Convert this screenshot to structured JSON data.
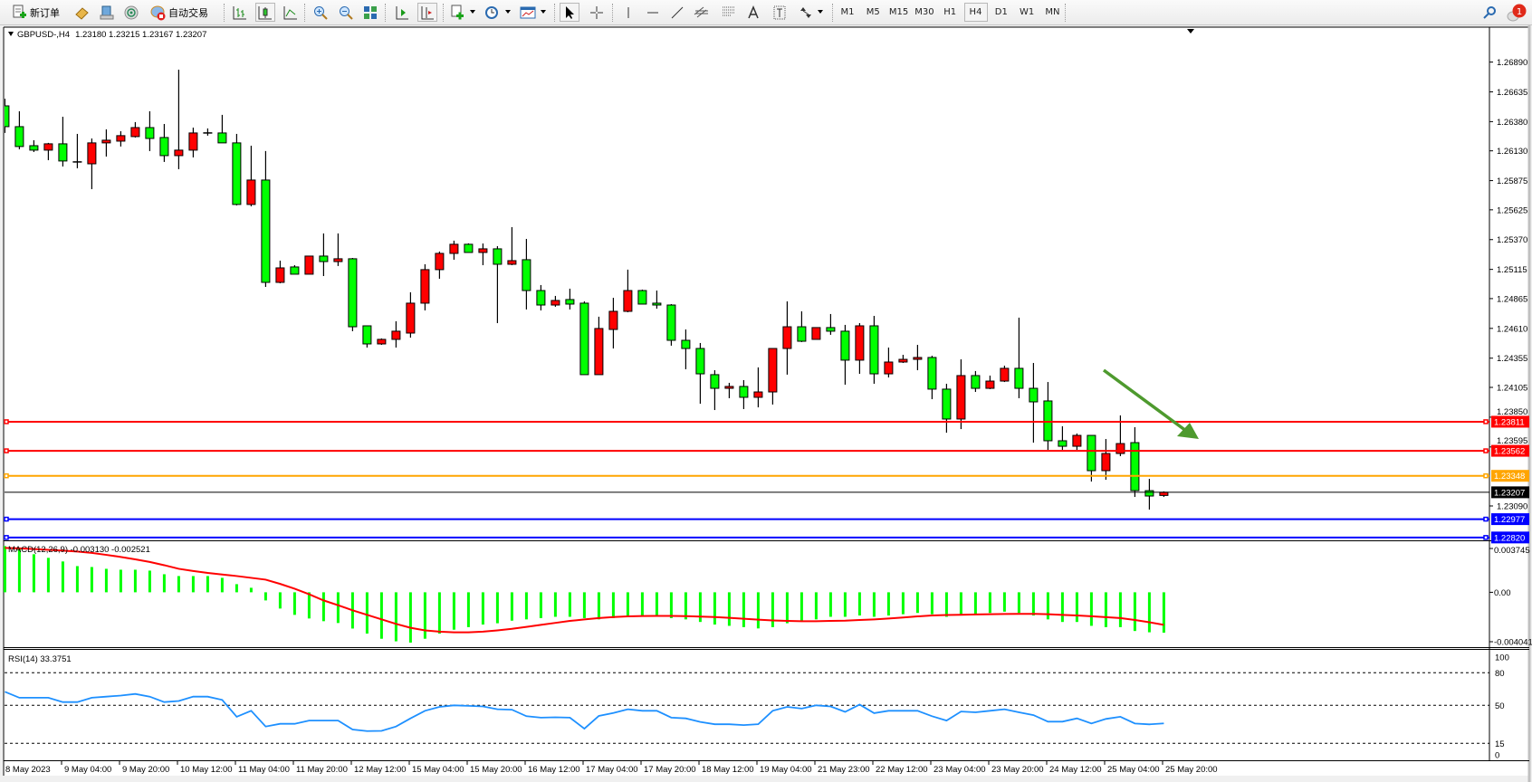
{
  "toolbar": {
    "new_order": "新订单",
    "auto_trading": "自动交易",
    "timeframes": [
      "M1",
      "M5",
      "M15",
      "M30",
      "H1",
      "H4",
      "D1",
      "W1",
      "MN"
    ],
    "selected_timeframe": "H4",
    "alert_count": "1",
    "icons": [
      "new-order-icon",
      "market-watch-icon",
      "navigator-icon",
      "signals-icon",
      "auto-trading-icon",
      "bar-chart-icon",
      "candlestick-icon",
      "line-chart-icon",
      "zoom-in-icon",
      "zoom-out-icon",
      "tile-windows-icon",
      "auto-scroll-icon",
      "chart-shift-icon",
      "indicators-icon",
      "periods-icon",
      "templates-icon",
      "cursor-icon",
      "crosshair-icon",
      "vertical-line-icon",
      "horizontal-line-icon",
      "trendline-icon",
      "equidistant-channel-icon",
      "fibonacci-icon",
      "text-icon",
      "text-label-icon",
      "arrows-icon",
      "search-icon",
      "alert-icon"
    ]
  },
  "chart": {
    "symbol": "GBPUSD-,H4",
    "ohlc": "1.23180 1.23215 1.23167 1.23207",
    "macd_label": "MACD(12,26,9) -0.003130 -0.002521",
    "rsi_label": "RSI(14) 33.3751"
  },
  "chart_data": [
    {
      "type": "candlestick",
      "title": "GBPUSD-,H4",
      "bull_color": "#ff0000",
      "bear_color": "#00ff00",
      "y_ticks": [
        "1.26890",
        "1.26635",
        "1.26380",
        "1.26130",
        "1.25875",
        "1.25625",
        "1.25370",
        "1.25115",
        "1.24865",
        "1.24610",
        "1.24355",
        "1.24105",
        "1.23850",
        "1.23595",
        "1.23090"
      ],
      "x_tick_labels": [
        "8 May 2023",
        "9 May 04:00",
        "9 May 20:00",
        "10 May 12:00",
        "11 May 04:00",
        "11 May 20:00",
        "12 May 12:00",
        "15 May 04:00",
        "15 May 20:00",
        "16 May 12:00",
        "17 May 04:00",
        "17 May 20:00",
        "18 May 12:00",
        "19 May 04:00",
        "21 May 23:00",
        "22 May 12:00",
        "23 May 04:00",
        "23 May 20:00",
        "24 May 12:00",
        "25 May 04:00",
        "25 May 20:00"
      ],
      "ohlc": [
        [
          1.26515,
          1.26577,
          1.26283,
          1.26337
        ],
        [
          1.26337,
          1.26469,
          1.26143,
          1.26167
        ],
        [
          1.26174,
          1.26221,
          1.2612,
          1.26136
        ],
        [
          1.26136,
          1.26198,
          1.2605,
          1.2619
        ],
        [
          1.2619,
          1.26422,
          1.25996,
          1.26043
        ],
        [
          1.26035,
          1.26275,
          1.25981,
          1.26027
        ],
        [
          1.26019,
          1.26236,
          1.25802,
          1.26198
        ],
        [
          1.26198,
          1.26314,
          1.26081,
          1.26221
        ],
        [
          1.26213,
          1.26298,
          1.26167,
          1.2626
        ],
        [
          1.26252,
          1.26376,
          1.26244,
          1.26329
        ],
        [
          1.26329,
          1.26469,
          1.26128,
          1.26236
        ],
        [
          1.26244,
          1.2636,
          1.26035,
          1.26089
        ],
        [
          1.26089,
          1.26825,
          1.25973,
          1.26136
        ],
        [
          1.26136,
          1.26329,
          1.26074,
          1.26283
        ],
        [
          1.26283,
          1.26322,
          1.2626,
          1.26283
        ],
        [
          1.26283,
          1.26438,
          1.26198,
          1.26198
        ],
        [
          1.26198,
          1.26275,
          1.25663,
          1.25671
        ],
        [
          1.25671,
          1.26174,
          1.25655,
          1.2588
        ],
        [
          1.2588,
          1.26128,
          1.24965,
          1.25004
        ],
        [
          1.25004,
          1.2519,
          1.24996,
          1.25128
        ],
        [
          1.25136,
          1.25151,
          1.25074,
          1.25074
        ],
        [
          1.25074,
          1.25229,
          1.25074,
          1.25229
        ],
        [
          1.25229,
          1.25423,
          1.25058,
          1.25182
        ],
        [
          1.25182,
          1.25423,
          1.25144,
          1.25206
        ],
        [
          1.25206,
          1.25213,
          1.24586,
          1.24624
        ],
        [
          1.24632,
          1.24632,
          1.24446,
          1.24477
        ],
        [
          1.24477,
          1.24524,
          1.24469,
          1.24516
        ],
        [
          1.24516,
          1.24671,
          1.24446,
          1.24586
        ],
        [
          1.2457,
          1.24919,
          1.24531,
          1.24826
        ],
        [
          1.24826,
          1.25159,
          1.24764,
          1.25113
        ],
        [
          1.25113,
          1.25268,
          1.25035,
          1.25252
        ],
        [
          1.25252,
          1.25361,
          1.25198,
          1.2533
        ],
        [
          1.2533,
          1.25338,
          1.2526,
          1.2526
        ],
        [
          1.2526,
          1.25337,
          1.25151,
          1.25291
        ],
        [
          1.25291,
          1.25314,
          1.24655,
          1.25159
        ],
        [
          1.25159,
          1.25477,
          1.25151,
          1.2519
        ],
        [
          1.25198,
          1.25376,
          1.24772,
          1.24934
        ],
        [
          1.24934,
          1.24981,
          1.24764,
          1.2481
        ],
        [
          1.2481,
          1.24888,
          1.24795,
          1.24849
        ],
        [
          1.24857,
          1.2495,
          1.24772,
          1.24818
        ],
        [
          1.24826,
          1.24841,
          1.24214,
          1.24214
        ],
        [
          1.24214,
          1.2471,
          1.24214,
          1.24609
        ],
        [
          1.24601,
          1.24872,
          1.24438,
          1.24756
        ],
        [
          1.24756,
          1.25113,
          1.24748,
          1.24934
        ],
        [
          1.24934,
          1.24942,
          1.24818,
          1.24818
        ],
        [
          1.24826,
          1.24934,
          1.24779,
          1.2481
        ],
        [
          1.2481,
          1.24818,
          1.24462,
          1.24508
        ],
        [
          1.24508,
          1.24601,
          1.2426,
          1.24438
        ],
        [
          1.24438,
          1.24485,
          1.23965,
          1.24221
        ],
        [
          1.24214,
          1.24252,
          1.23911,
          1.24097
        ],
        [
          1.24097,
          1.24144,
          1.24012,
          1.24113
        ],
        [
          1.24113,
          1.24167,
          1.23919,
          1.2402
        ],
        [
          1.2402,
          1.24276,
          1.23934,
          1.24066
        ],
        [
          1.24066,
          1.24438,
          1.23958,
          1.24438
        ],
        [
          1.24438,
          1.24841,
          1.24214,
          1.24624
        ],
        [
          1.24624,
          1.24756,
          1.24493,
          1.245
        ],
        [
          1.24516,
          1.24617,
          1.24516,
          1.24617
        ],
        [
          1.24617,
          1.24733,
          1.24555,
          1.24586
        ],
        [
          1.24586,
          1.2464,
          1.24128,
          1.24338
        ],
        [
          1.24338,
          1.24655,
          1.24221,
          1.24632
        ],
        [
          1.24632,
          1.24717,
          1.24136,
          1.24221
        ],
        [
          1.24221,
          1.24446,
          1.2419,
          1.24322
        ],
        [
          1.24322,
          1.24384,
          1.24314,
          1.24345
        ],
        [
          1.24345,
          1.24469,
          1.24252,
          1.24361
        ],
        [
          1.24361,
          1.24376,
          1.24004,
          1.2409
        ],
        [
          1.2409,
          1.24136,
          1.23717,
          1.23834
        ],
        [
          1.23834,
          1.24345,
          1.23748,
          1.24206
        ],
        [
          1.24206,
          1.24245,
          1.24066,
          1.24097
        ],
        [
          1.24097,
          1.24206,
          1.2409,
          1.24159
        ],
        [
          1.24159,
          1.24291,
          1.24151,
          1.24268
        ],
        [
          1.24268,
          1.24702,
          1.24012,
          1.24097
        ],
        [
          1.24097,
          1.24314,
          1.23632,
          1.23981
        ],
        [
          1.23989,
          1.24151,
          1.2357,
          1.23648
        ],
        [
          1.23648,
          1.23772,
          1.2357,
          1.23601
        ],
        [
          1.23601,
          1.2371,
          1.2357,
          1.23694
        ],
        [
          1.23694,
          1.23694,
          1.23299,
          1.23392
        ],
        [
          1.23392,
          1.23663,
          1.23314,
          1.23539
        ],
        [
          1.23539,
          1.23865,
          1.23516,
          1.23624
        ],
        [
          1.23632,
          1.23764,
          1.23167,
          1.23221
        ],
        [
          1.23221,
          1.23322,
          1.23059,
          1.23175
        ],
        [
          1.2318,
          1.23215,
          1.23167,
          1.23207
        ]
      ],
      "horizontal_lines": [
        {
          "price": "1.23811",
          "color": "#ff0000"
        },
        {
          "price": "1.23562",
          "color": "#ff0000"
        },
        {
          "price": "1.23348",
          "color": "#ffa500"
        },
        {
          "price": "1.22977",
          "color": "#0000ff"
        },
        {
          "price": "1.22820",
          "color": "#0000ff"
        }
      ],
      "bid_line": {
        "price": "1.23207",
        "color": "#000000"
      },
      "annotation_arrow": {
        "color": "#4e9a2e",
        "direction": "down-right"
      }
    },
    {
      "type": "bar",
      "title": "MACD(12,26,9)",
      "y_ticks": [
        "0.003745",
        "0.00",
        "-0.004041"
      ],
      "ylim": [
        -0.004041,
        0.003745
      ],
      "histogram_color": "#00ff00",
      "signal_color": "#ff0000",
      "histogram": [
        0.00358,
        0.00344,
        0.00295,
        0.00267,
        0.00239,
        0.00203,
        0.00196,
        0.00182,
        0.00175,
        0.00175,
        0.00168,
        0.0014,
        0.00126,
        0.00126,
        0.00126,
        0.00112,
        0.00063,
        0.00035,
        -0.00063,
        -0.00126,
        -0.00175,
        -0.00203,
        -0.00224,
        -0.00238,
        -0.00281,
        -0.0032,
        -0.0036,
        -0.0038,
        -0.0039,
        -0.0036,
        -0.0032,
        -0.0029,
        -0.0027,
        -0.0025,
        -0.0024,
        -0.0022,
        -0.0021,
        -0.002,
        -0.0019,
        -0.0019,
        -0.002,
        -0.0021,
        -0.002,
        -0.0019,
        -0.0019,
        -0.0019,
        -0.002,
        -0.0021,
        -0.0023,
        -0.0025,
        -0.0026,
        -0.0027,
        -0.0028,
        -0.0027,
        -0.0024,
        -0.0022,
        -0.0021,
        -0.0019,
        -0.0019,
        -0.0018,
        -0.0019,
        -0.0018,
        -0.0017,
        -0.0016,
        -0.0017,
        -0.0019,
        -0.0018,
        -0.0017,
        -0.0016,
        -0.0015,
        -0.0016,
        -0.0018,
        -0.0021,
        -0.0023,
        -0.0023,
        -0.0026,
        -0.0027,
        -0.0027,
        -0.003,
        -0.0031,
        -0.00313
      ],
      "signal": [
        0.00344,
        0.0034,
        0.00335,
        0.00329,
        0.00323,
        0.00316,
        0.00305,
        0.0029,
        0.00274,
        0.00255,
        0.00235,
        0.0021,
        0.00182,
        0.00165,
        0.0015,
        0.00138,
        0.00126,
        0.00112,
        0.00098,
        0.00065,
        0.00028,
        -0.00015,
        -0.00063,
        -0.001,
        -0.0014,
        -0.00175,
        -0.0021,
        -0.00245,
        -0.00275,
        -0.00295,
        -0.00305,
        -0.0031,
        -0.0031,
        -0.00305,
        -0.00295,
        -0.00283,
        -0.00268,
        -0.00252,
        -0.00237,
        -0.00222,
        -0.0021,
        -0.002,
        -0.00192,
        -0.00187,
        -0.00184,
        -0.00183,
        -0.00183,
        -0.00185,
        -0.00188,
        -0.00192,
        -0.00198,
        -0.00205,
        -0.00212,
        -0.00218,
        -0.00222,
        -0.00224,
        -0.00224,
        -0.00222,
        -0.0022,
        -0.00215,
        -0.0021,
        -0.00203,
        -0.00195,
        -0.00187,
        -0.0018,
        -0.00176,
        -0.00174,
        -0.00172,
        -0.0017,
        -0.00168,
        -0.00167,
        -0.00167,
        -0.0017,
        -0.00175,
        -0.0018,
        -0.00186,
        -0.00193,
        -0.002,
        -0.00215,
        -0.00232,
        -0.002521
      ]
    },
    {
      "type": "line",
      "title": "RSI(14)",
      "y_ticks": [
        "100",
        "80",
        "50",
        "15",
        "0"
      ],
      "levels": [
        80,
        50,
        15
      ],
      "ylim": [
        0,
        100
      ],
      "color": "#1e90ff",
      "values": [
        62.5,
        57,
        57,
        57,
        53,
        53,
        57,
        58,
        59,
        60.5,
        58,
        53,
        54,
        58,
        58,
        55,
        39.5,
        45,
        30.5,
        33,
        33,
        36,
        36,
        36,
        27.7,
        26.3,
        26.5,
        30.5,
        38,
        45,
        48.6,
        50,
        49.5,
        49,
        46.4,
        46,
        40,
        38.7,
        39,
        38.7,
        28.5,
        40.3,
        43,
        46.4,
        45,
        45,
        38.7,
        38,
        34.7,
        32.6,
        32.6,
        31.8,
        32.6,
        45,
        48.6,
        47,
        50,
        49,
        44,
        50.7,
        42.8,
        45,
        45,
        45,
        40,
        36,
        44.3,
        43.6,
        45,
        46.4,
        43.6,
        41,
        35,
        35,
        38,
        33.3,
        37.5,
        39.5,
        33.3,
        32.5,
        33.3751
      ]
    }
  ]
}
